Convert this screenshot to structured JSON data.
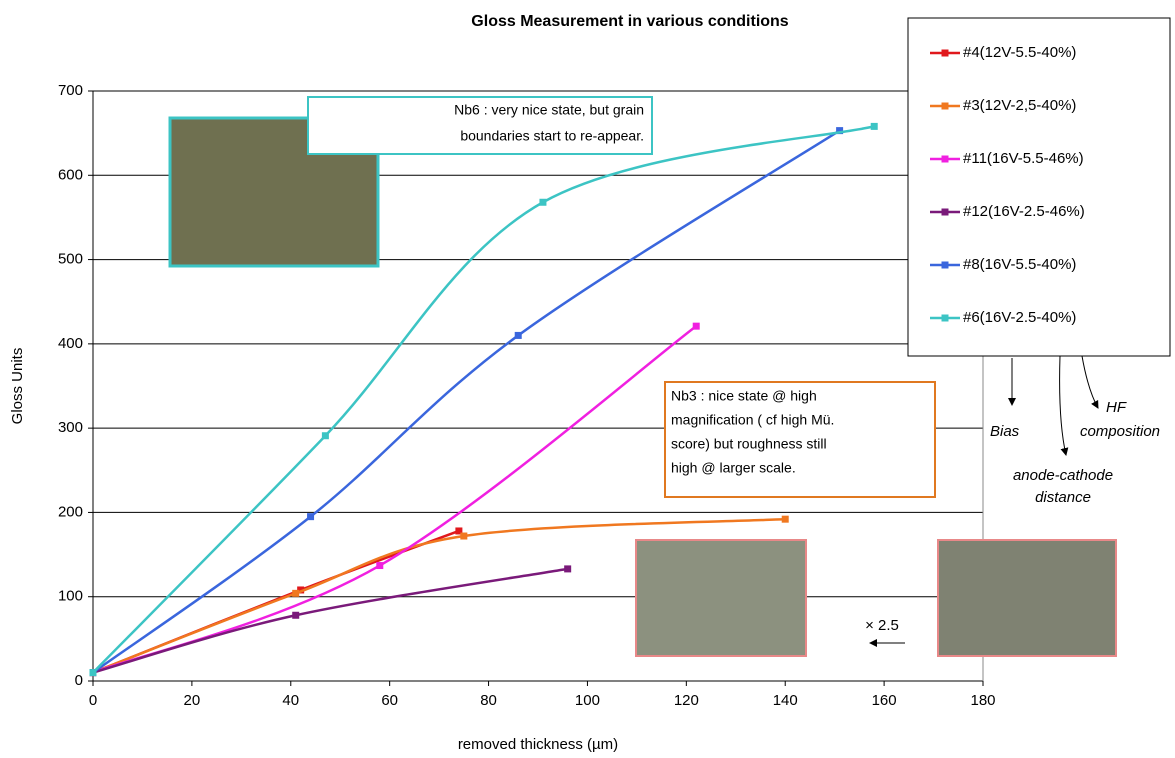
{
  "chart_data": {
    "type": "line",
    "title": "Gloss Measurement in various conditions",
    "x_label": "removed thickness (µm)",
    "y_label": "Gloss Units",
    "xlim": [
      0,
      180
    ],
    "xticks": [
      0,
      20,
      40,
      60,
      80,
      100,
      120,
      140,
      160,
      180
    ],
    "ylim": [
      0,
      700
    ],
    "yticks": [
      0,
      100,
      200,
      300,
      400,
      500,
      600,
      700
    ],
    "grid": true,
    "legend": "upper right",
    "series": [
      {
        "name": "#4(12V-5.5-40%)",
        "color": "#e0181c",
        "x": [
          0,
          42,
          74
        ],
        "values": [
          10,
          108,
          178
        ]
      },
      {
        "name": "#3(12V-2,5-40%)",
        "color": "#f07820",
        "x": [
          0,
          41,
          75,
          140
        ],
        "values": [
          10,
          104,
          172,
          192
        ]
      },
      {
        "name": "#11(16V-5.5-46%)",
        "color": "#f020e0",
        "x": [
          0,
          58,
          122
        ],
        "values": [
          10,
          137,
          421
        ]
      },
      {
        "name": "#12(16V-2.5-46%)",
        "color": "#7a1a7a",
        "x": [
          0,
          41,
          96
        ],
        "values": [
          10,
          78,
          133
        ]
      },
      {
        "name": "#8(16V-5.5-40%)",
        "color": "#3a66dd",
        "x": [
          0,
          44,
          86,
          151
        ],
        "values": [
          10,
          195,
          410,
          653
        ]
      },
      {
        "name": "#6(16V-2.5-40%)",
        "color": "#3cc4c4",
        "x": [
          0,
          47,
          91,
          158
        ],
        "values": [
          10,
          291,
          568,
          658
        ]
      }
    ],
    "annotations": [
      {
        "lines": [
          "Nb6 : very nice state, but grain",
          "boundaries start to re-appear."
        ]
      },
      {
        "lines": [
          "Nb3 : nice state  @ high",
          "magnification ( cf high Mü.",
          "score) but roughness still",
          "high @ larger scale."
        ]
      }
    ],
    "legend_notes": {
      "bias": "Bias",
      "hf": [
        "HF",
        "composition"
      ],
      "distance": [
        "anode-cathode",
        "distance"
      ]
    },
    "scale_note": "× 2.5"
  }
}
